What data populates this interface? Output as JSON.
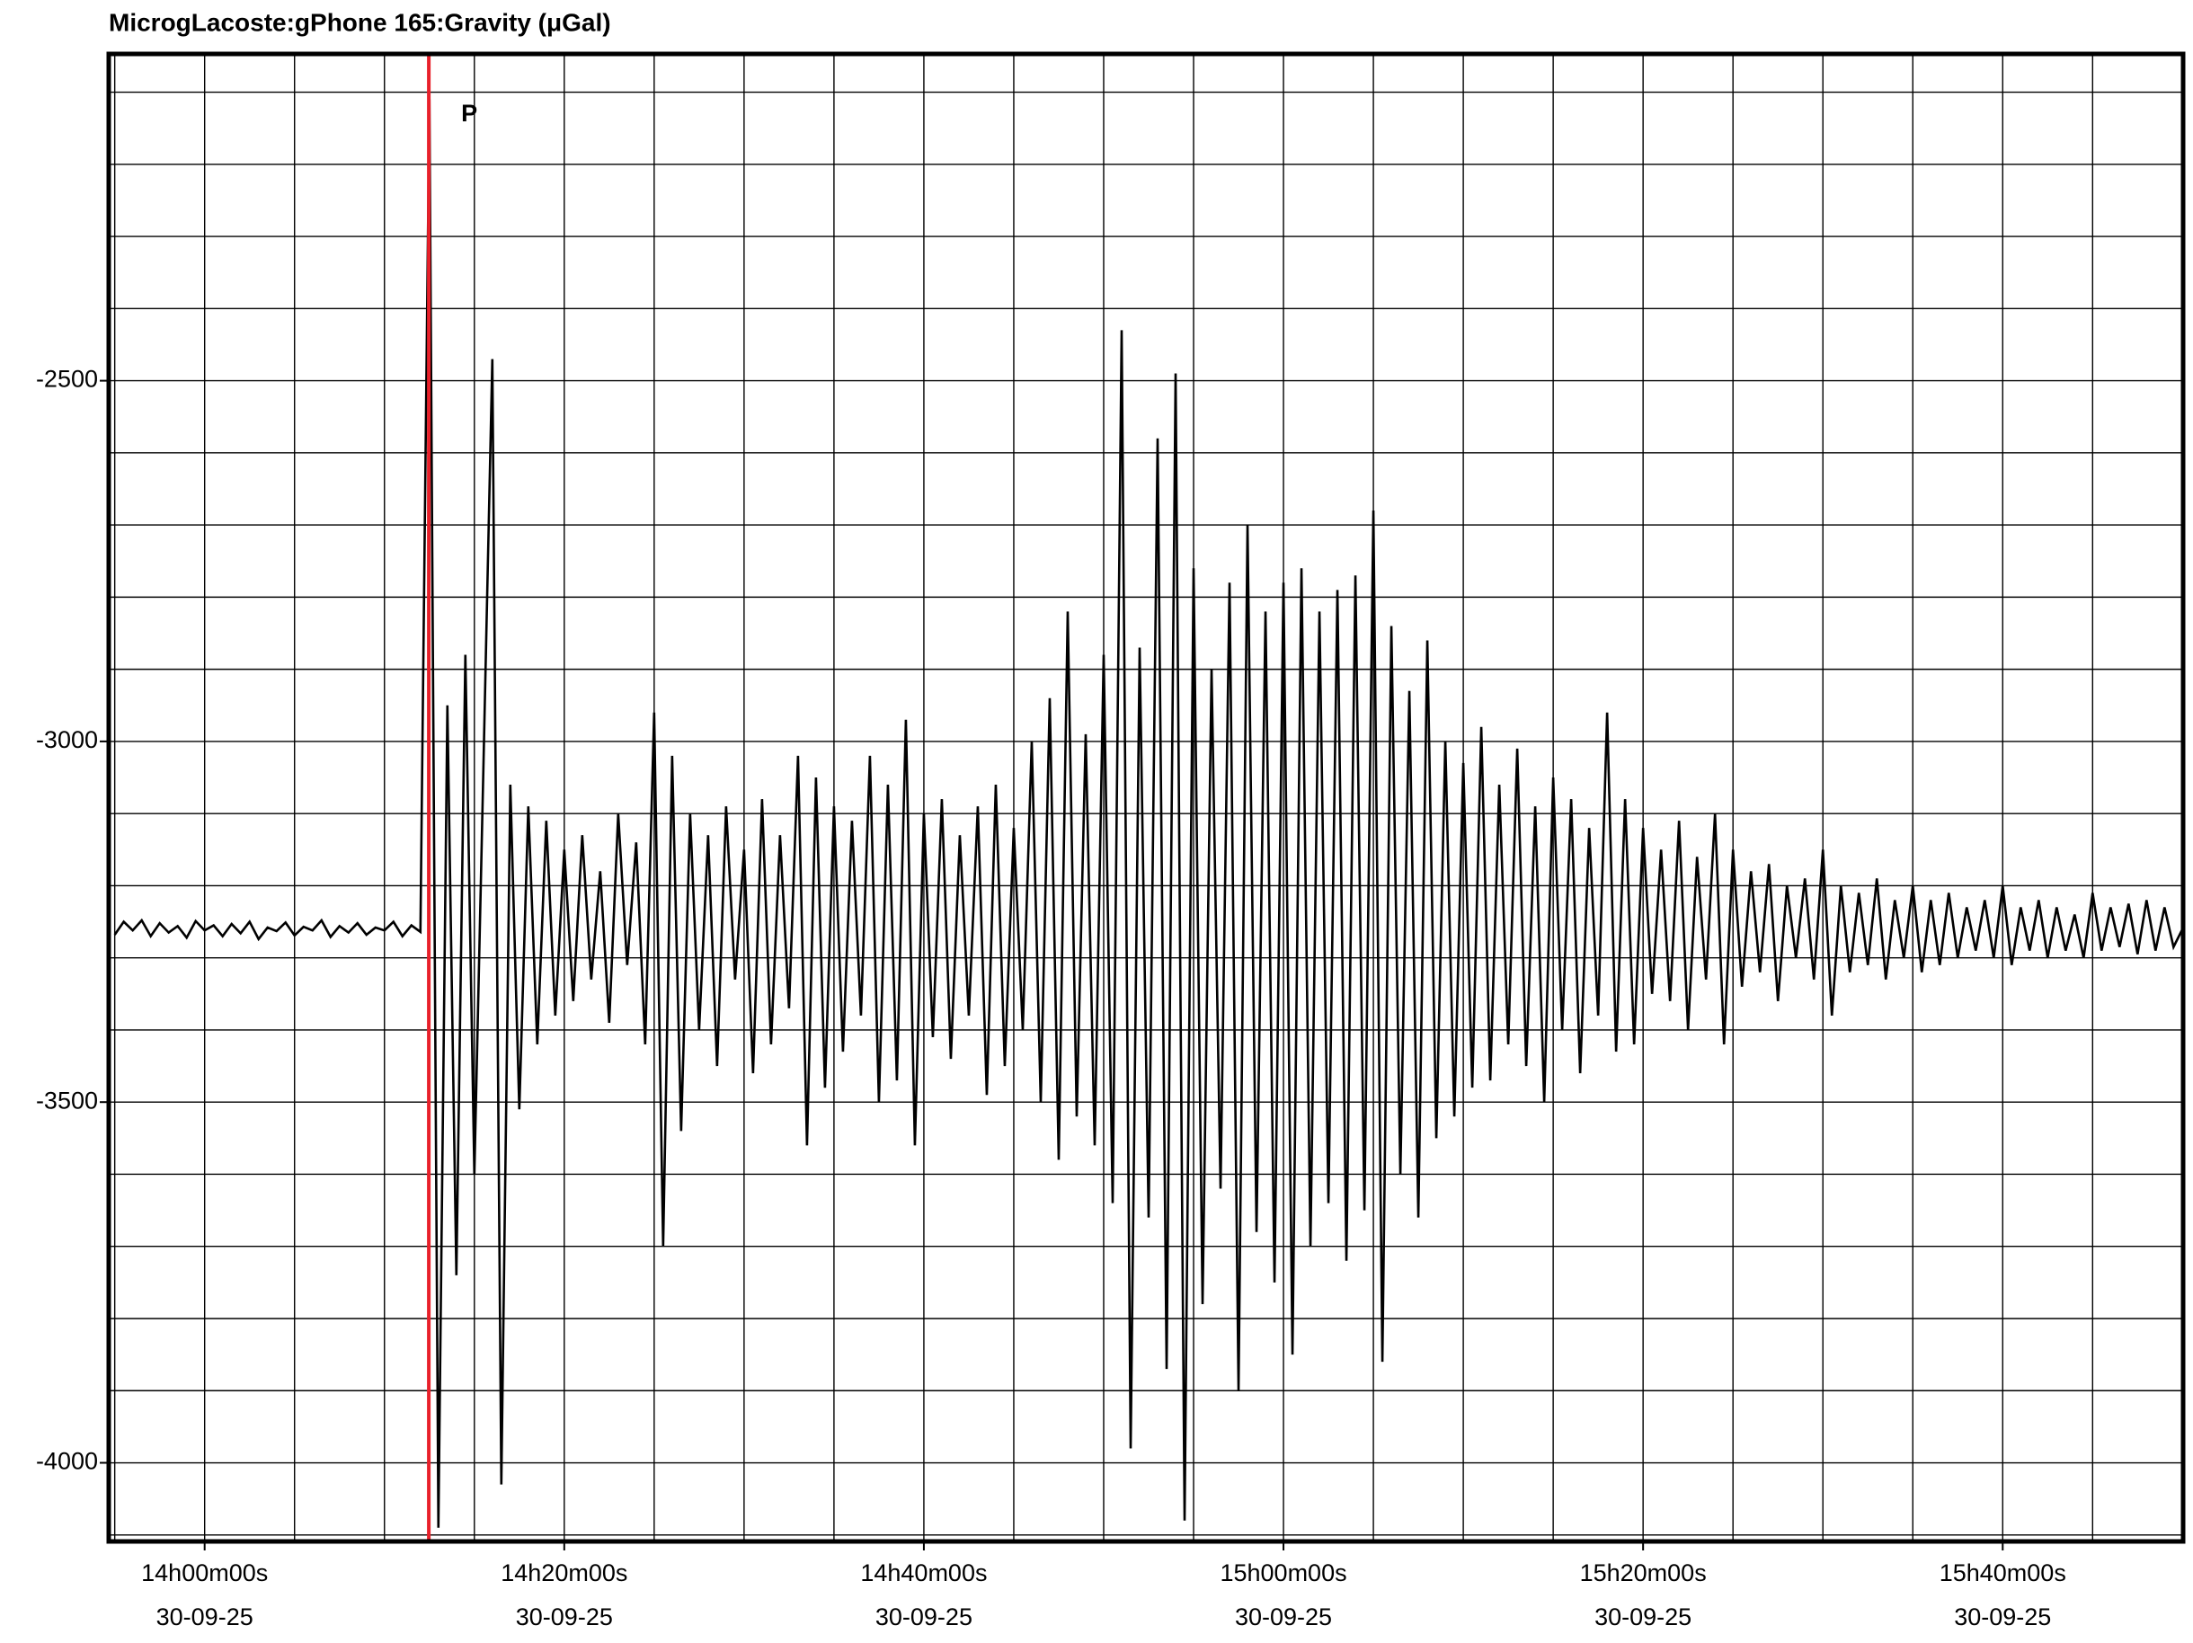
{
  "chart_data": {
    "type": "line",
    "title": "MicrogLacoste:gPhone 165:Gravity (μGal)",
    "color": "#000000",
    "xlim": [
      "13:54:40",
      "15:50:02"
    ],
    "ylim": [
      -4109,
      -2047
    ],
    "yticks": [
      -4000,
      -3500,
      -3000,
      -2500
    ],
    "xticks": [
      {
        "value": "14:00:00",
        "label": [
          "14h00m00s",
          "30-09-25"
        ]
      },
      {
        "value": "14:20:00",
        "label": [
          "14h20m00s",
          "30-09-25"
        ]
      },
      {
        "value": "14:40:00",
        "label": [
          "14h40m00s",
          "30-09-25"
        ]
      },
      {
        "value": "15:00:00",
        "label": [
          "15h00m00s",
          "30-09-25"
        ]
      },
      {
        "value": "15:20:00",
        "label": [
          "15h20m00s",
          "30-09-25"
        ]
      },
      {
        "value": "15:40:00",
        "label": [
          "15h40m00s",
          "30-09-25"
        ]
      }
    ],
    "xgrid": [
      "13:55:00",
      "14:00:00",
      "14:05:00",
      "14:10:00",
      "14:15:00",
      "14:20:00",
      "14:25:00",
      "14:30:00",
      "14:35:00",
      "14:40:00",
      "14:45:00",
      "14:50:00",
      "14:55:00",
      "15:00:00",
      "15:05:00",
      "15:10:00",
      "15:15:00",
      "15:20:00",
      "15:25:00",
      "15:30:00",
      "15:35:00",
      "15:40:00",
      "15:45:00",
      "15:50:00"
    ],
    "ygrid": [
      -4100,
      -4000,
      -3900,
      -3800,
      -3700,
      -3600,
      -3500,
      -3400,
      -3300,
      -3200,
      -3100,
      -3000,
      -2900,
      -2800,
      -2700,
      -2600,
      -2500,
      -2400,
      -2300,
      -2200,
      -2100
    ],
    "grid": true,
    "annotations": [
      {
        "text": "P",
        "x": "14:12:28",
        "color": "#e8202a"
      }
    ],
    "x": [
      "13:55:00",
      "13:55:30",
      "13:56:00",
      "13:56:30",
      "13:57:00",
      "13:57:30",
      "13:58:00",
      "13:58:30",
      "13:59:00",
      "13:59:30",
      "14:00:00",
      "14:00:30",
      "14:01:00",
      "14:01:30",
      "14:02:00",
      "14:02:30",
      "14:03:00",
      "14:03:30",
      "14:04:00",
      "14:04:30",
      "14:05:00",
      "14:05:30",
      "14:06:00",
      "14:06:30",
      "14:07:00",
      "14:07:30",
      "14:08:00",
      "14:08:30",
      "14:09:00",
      "14:09:30",
      "14:10:00",
      "14:10:30",
      "14:11:00",
      "14:11:30",
      "14:12:00",
      "14:12:30",
      "14:13:00",
      "14:13:30",
      "14:14:00",
      "14:14:30",
      "14:15:00",
      "14:15:30",
      "14:16:00",
      "14:16:30",
      "14:17:00",
      "14:17:30",
      "14:18:00",
      "14:18:30",
      "14:19:00",
      "14:19:30",
      "14:20:00",
      "14:20:30",
      "14:21:00",
      "14:21:30",
      "14:22:00",
      "14:22:30",
      "14:23:00",
      "14:23:30",
      "14:24:00",
      "14:24:30",
      "14:25:00",
      "14:25:30",
      "14:26:00",
      "14:26:30",
      "14:27:00",
      "14:27:30",
      "14:28:00",
      "14:28:30",
      "14:29:00",
      "14:29:30",
      "14:30:00",
      "14:30:30",
      "14:31:00",
      "14:31:30",
      "14:32:00",
      "14:32:30",
      "14:33:00",
      "14:33:30",
      "14:34:00",
      "14:34:30",
      "14:35:00",
      "14:35:30",
      "14:36:00",
      "14:36:30",
      "14:37:00",
      "14:37:30",
      "14:38:00",
      "14:38:30",
      "14:39:00",
      "14:39:30",
      "14:40:00",
      "14:40:30",
      "14:41:00",
      "14:41:30",
      "14:42:00",
      "14:42:30",
      "14:43:00",
      "14:43:30",
      "14:44:00",
      "14:44:30",
      "14:45:00",
      "14:45:30",
      "14:46:00",
      "14:46:30",
      "14:47:00",
      "14:47:30",
      "14:48:00",
      "14:48:30",
      "14:49:00",
      "14:49:30",
      "14:50:00",
      "14:50:30",
      "14:51:00",
      "14:51:30",
      "14:52:00",
      "14:52:30",
      "14:53:00",
      "14:53:30",
      "14:54:00",
      "14:54:30",
      "14:55:00",
      "14:55:30",
      "14:56:00",
      "14:56:30",
      "14:57:00",
      "14:57:30",
      "14:58:00",
      "14:58:30",
      "14:59:00",
      "14:59:30",
      "15:00:00",
      "15:00:30",
      "15:01:00",
      "15:01:30",
      "15:02:00",
      "15:02:30",
      "15:03:00",
      "15:03:30",
      "15:04:00",
      "15:04:30",
      "15:05:00",
      "15:05:30",
      "15:06:00",
      "15:06:30",
      "15:07:00",
      "15:07:30",
      "15:08:00",
      "15:08:30",
      "15:09:00",
      "15:09:30",
      "15:10:00",
      "15:10:30",
      "15:11:00",
      "15:11:30",
      "15:12:00",
      "15:12:30",
      "15:13:00",
      "15:13:30",
      "15:14:00",
      "15:14:30",
      "15:15:00",
      "15:15:30",
      "15:16:00",
      "15:16:30",
      "15:17:00",
      "15:17:30",
      "15:18:00",
      "15:18:30",
      "15:19:00",
      "15:19:30",
      "15:20:00",
      "15:20:30",
      "15:21:00",
      "15:21:30",
      "15:22:00",
      "15:22:30",
      "15:23:00",
      "15:23:30",
      "15:24:00",
      "15:24:30",
      "15:25:00",
      "15:25:30",
      "15:26:00",
      "15:26:30",
      "15:27:00",
      "15:27:30",
      "15:28:00",
      "15:28:30",
      "15:29:00",
      "15:29:30",
      "15:30:00",
      "15:30:30",
      "15:31:00",
      "15:31:30",
      "15:32:00",
      "15:32:30",
      "15:33:00",
      "15:33:30",
      "15:34:00",
      "15:34:30",
      "15:35:00",
      "15:35:30",
      "15:36:00",
      "15:36:30",
      "15:37:00",
      "15:37:30",
      "15:38:00",
      "15:38:30",
      "15:39:00",
      "15:39:30",
      "15:40:00",
      "15:40:30",
      "15:41:00",
      "15:41:30",
      "15:42:00",
      "15:42:30",
      "15:43:00",
      "15:43:30",
      "15:44:00",
      "15:44:30",
      "15:45:00",
      "15:45:30",
      "15:46:00",
      "15:46:30",
      "15:47:00",
      "15:47:30",
      "15:48:00",
      "15:48:30",
      "15:49:00",
      "15:49:30",
      "15:50:00"
    ],
    "values": [
      -3268,
      -3250,
      -3262,
      -3248,
      -3270,
      -3252,
      -3265,
      -3256,
      -3272,
      -3249,
      -3262,
      -3255,
      -3270,
      -3253,
      -3266,
      -3250,
      -3274,
      -3258,
      -3263,
      -3251,
      -3269,
      -3257,
      -3262,
      -3248,
      -3271,
      -3256,
      -3265,
      -3252,
      -3268,
      -3258,
      -3262,
      -3250,
      -3270,
      -3255,
      -3264,
      -2110,
      -4090,
      -2950,
      -3740,
      -2880,
      -3600,
      -3040,
      -2470,
      -4030,
      -3060,
      -3510,
      -3090,
      -3420,
      -3110,
      -3380,
      -3150,
      -3360,
      -3130,
      -3330,
      -3180,
      -3390,
      -3100,
      -3310,
      -3140,
      -3420,
      -2960,
      -3700,
      -3020,
      -3540,
      -3100,
      -3400,
      -3130,
      -3450,
      -3090,
      -3330,
      -3150,
      -3460,
      -3080,
      -3420,
      -3130,
      -3370,
      -3020,
      -3560,
      -3050,
      -3480,
      -3090,
      -3430,
      -3110,
      -3380,
      -3020,
      -3500,
      -3060,
      -3470,
      -2970,
      -3560,
      -3100,
      -3410,
      -3080,
      -3440,
      -3130,
      -3380,
      -3090,
      -3490,
      -3060,
      -3450,
      -3120,
      -3400,
      -3000,
      -3500,
      -2940,
      -3580,
      -2820,
      -3520,
      -2990,
      -3560,
      -2880,
      -3640,
      -2430,
      -3980,
      -2870,
      -3660,
      -2580,
      -3870,
      -2490,
      -4080,
      -2760,
      -3780,
      -2900,
      -3620,
      -2780,
      -3900,
      -2700,
      -3680,
      -2820,
      -3750,
      -2780,
      -3850,
      -2760,
      -3700,
      -2820,
      -3640,
      -2790,
      -3720,
      -2770,
      -3650,
      -2680,
      -3860,
      -2840,
      -3600,
      -2930,
      -3660,
      -2860,
      -3550,
      -3000,
      -3520,
      -3030,
      -3480,
      -2980,
      -3470,
      -3060,
      -3420,
      -3010,
      -3450,
      -3090,
      -3500,
      -3050,
      -3400,
      -3080,
      -3460,
      -3120,
      -3380,
      -2960,
      -3430,
      -3080,
      -3420,
      -3120,
      -3350,
      -3150,
      -3360,
      -3110,
      -3400,
      -3160,
      -3330,
      -3100,
      -3420,
      -3150,
      -3340,
      -3180,
      -3320,
      -3170,
      -3360,
      -3200,
      -3300,
      -3190,
      -3330,
      -3150,
      -3380,
      -3200,
      -3320,
      -3210,
      -3310,
      -3190,
      -3330,
      -3220,
      -3300,
      -3200,
      -3320,
      -3220,
      -3310,
      -3210,
      -3300,
      -3230,
      -3290,
      -3220,
      -3300,
      -3200,
      -3310,
      -3230,
      -3290,
      -3220,
      -3300,
      -3230,
      -3290,
      -3240,
      -3300,
      -3210,
      -3290,
      -3230,
      -3285,
      -3225,
      -3295,
      -3220,
      -3290,
      -3230,
      -3285,
      -3260
    ]
  }
}
